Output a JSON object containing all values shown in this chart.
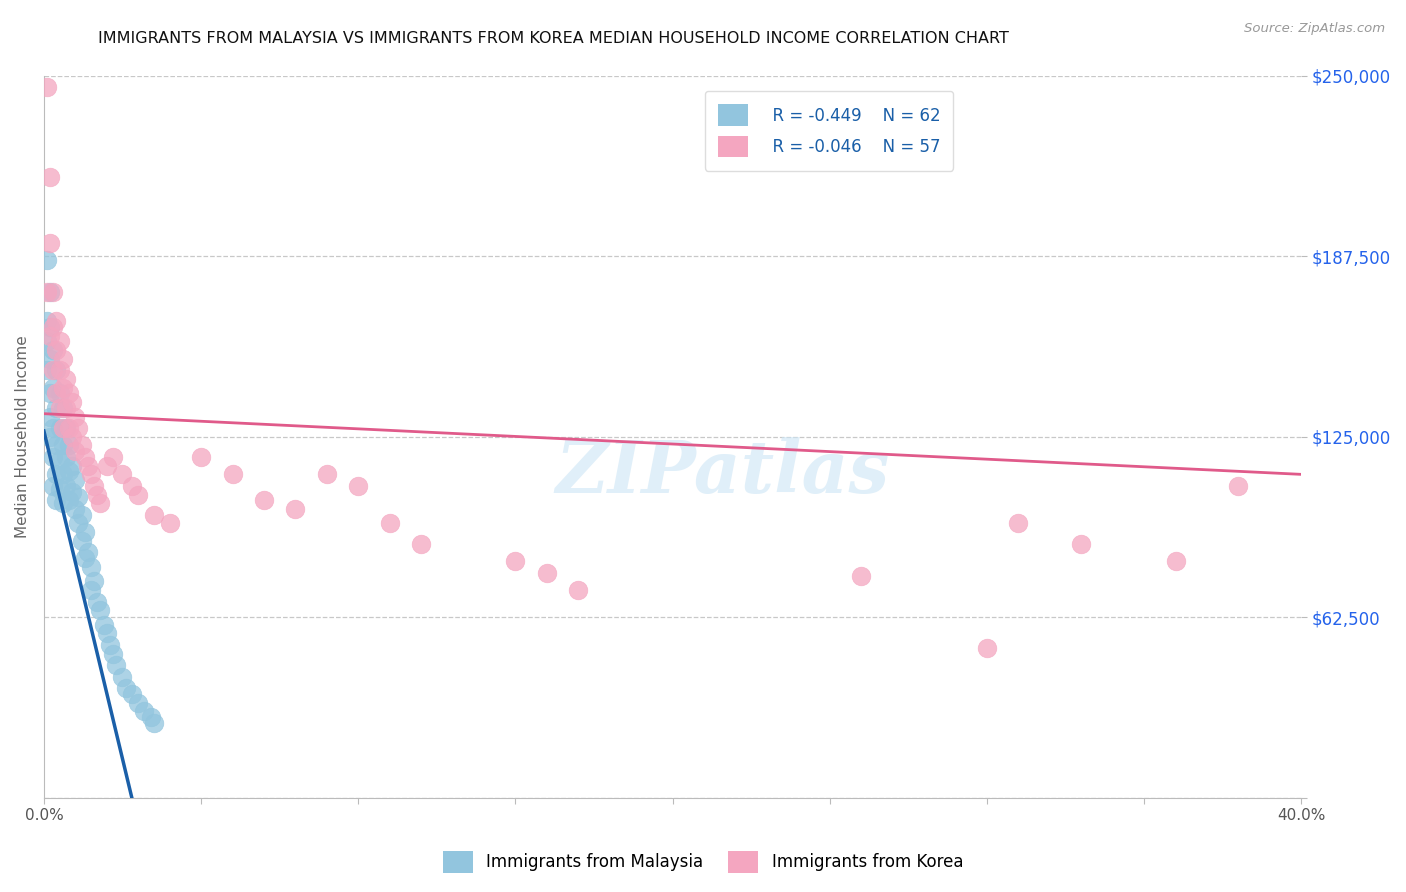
{
  "title": "IMMIGRANTS FROM MALAYSIA VS IMMIGRANTS FROM KOREA MEDIAN HOUSEHOLD INCOME CORRELATION CHART",
  "source": "Source: ZipAtlas.com",
  "ylabel": "Median Household Income",
  "x_min": 0.0,
  "x_max": 0.4,
  "y_min": 0,
  "y_max": 250000,
  "ytick_values": [
    0,
    62500,
    125000,
    187500,
    250000
  ],
  "xtick_values": [
    0.0,
    0.05,
    0.1,
    0.15,
    0.2,
    0.25,
    0.3,
    0.35,
    0.4
  ],
  "xtick_labels": [
    "0.0%",
    "",
    "",
    "",
    "",
    "",
    "",
    "",
    "40.0%"
  ],
  "color_malaysia": "#92c5de",
  "color_korea": "#f4a6c0",
  "trendline_malaysia": "#1a5fa8",
  "trendline_korea": "#e05a8a",
  "legend_R_malaysia": "R = -0.449",
  "legend_N_malaysia": "N = 62",
  "legend_R_korea": "R = -0.046",
  "legend_N_korea": "N = 57",
  "label_malaysia": "Immigrants from Malaysia",
  "label_korea": "Immigrants from Korea",
  "watermark": "ZIPatlas",
  "background_color": "#ffffff",
  "grid_color": "#c8c8c8",
  "malaysia_x": [
    0.001,
    0.001,
    0.001,
    0.001,
    0.002,
    0.002,
    0.002,
    0.002,
    0.002,
    0.002,
    0.003,
    0.003,
    0.003,
    0.003,
    0.003,
    0.004,
    0.004,
    0.004,
    0.004,
    0.004,
    0.005,
    0.005,
    0.005,
    0.005,
    0.006,
    0.006,
    0.006,
    0.006,
    0.007,
    0.007,
    0.007,
    0.008,
    0.008,
    0.008,
    0.009,
    0.009,
    0.01,
    0.01,
    0.011,
    0.011,
    0.012,
    0.012,
    0.013,
    0.013,
    0.014,
    0.015,
    0.015,
    0.016,
    0.017,
    0.018,
    0.019,
    0.02,
    0.021,
    0.022,
    0.023,
    0.025,
    0.026,
    0.028,
    0.03,
    0.032,
    0.034,
    0.035
  ],
  "malaysia_y": [
    186000,
    165000,
    158000,
    148000,
    175000,
    163000,
    152000,
    140000,
    132000,
    125000,
    155000,
    142000,
    128000,
    118000,
    108000,
    148000,
    135000,
    122000,
    112000,
    103000,
    140000,
    128000,
    117000,
    107000,
    135000,
    122000,
    112000,
    102000,
    128000,
    118000,
    108000,
    122000,
    113000,
    103000,
    115000,
    106000,
    110000,
    100000,
    104000,
    95000,
    98000,
    89000,
    92000,
    83000,
    85000,
    80000,
    72000,
    75000,
    68000,
    65000,
    60000,
    57000,
    53000,
    50000,
    46000,
    42000,
    38000,
    36000,
    33000,
    30000,
    28000,
    26000
  ],
  "korea_x": [
    0.001,
    0.001,
    0.002,
    0.002,
    0.002,
    0.003,
    0.003,
    0.003,
    0.004,
    0.004,
    0.004,
    0.005,
    0.005,
    0.005,
    0.006,
    0.006,
    0.006,
    0.007,
    0.007,
    0.008,
    0.008,
    0.009,
    0.009,
    0.01,
    0.01,
    0.011,
    0.012,
    0.013,
    0.014,
    0.015,
    0.016,
    0.017,
    0.018,
    0.02,
    0.022,
    0.025,
    0.028,
    0.03,
    0.035,
    0.04,
    0.05,
    0.06,
    0.07,
    0.08,
    0.09,
    0.1,
    0.11,
    0.12,
    0.15,
    0.16,
    0.17,
    0.26,
    0.3,
    0.31,
    0.33,
    0.36,
    0.38
  ],
  "korea_y": [
    246000,
    175000,
    215000,
    192000,
    160000,
    175000,
    163000,
    148000,
    165000,
    155000,
    140000,
    158000,
    148000,
    135000,
    152000,
    142000,
    128000,
    145000,
    135000,
    140000,
    128000,
    137000,
    125000,
    132000,
    120000,
    128000,
    122000,
    118000,
    115000,
    112000,
    108000,
    105000,
    102000,
    115000,
    118000,
    112000,
    108000,
    105000,
    98000,
    95000,
    118000,
    112000,
    103000,
    100000,
    112000,
    108000,
    95000,
    88000,
    82000,
    78000,
    72000,
    77000,
    52000,
    95000,
    88000,
    82000,
    108000
  ],
  "malaysia_trendline_x": [
    0.0,
    0.028
  ],
  "malaysia_trendline_y": [
    127000,
    0
  ],
  "korea_trendline_x": [
    0.0,
    0.4
  ],
  "korea_trendline_y": [
    133000,
    112000
  ]
}
